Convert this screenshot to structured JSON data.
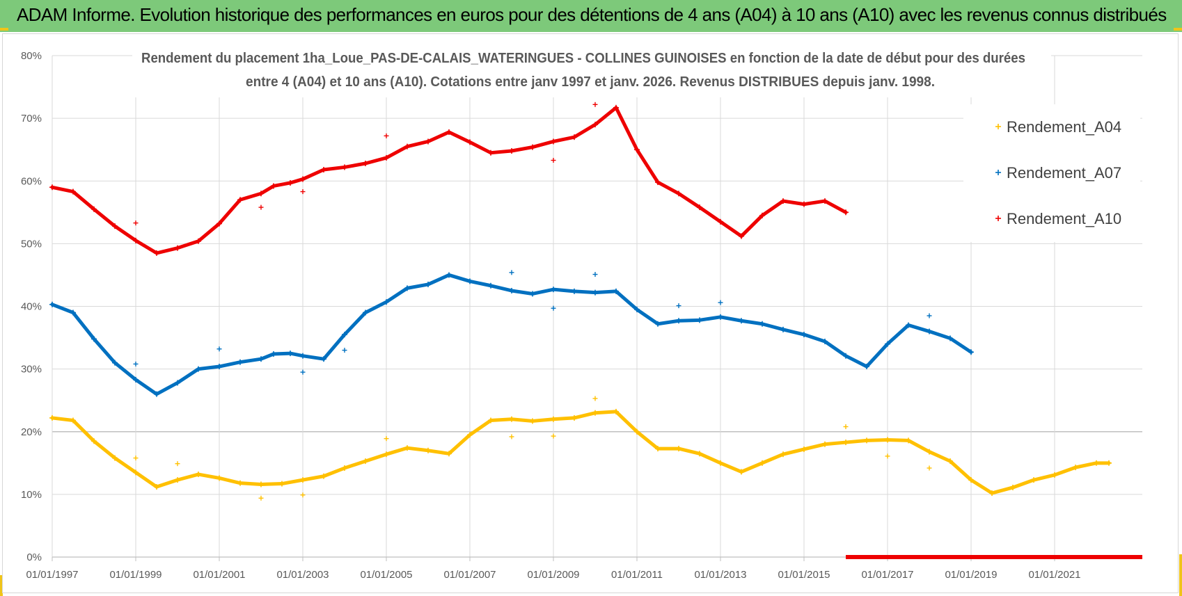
{
  "header": {
    "title": "ADAM Informe. Evolution historique des performances en euros pour des détentions de 4 ans (A04) à 10 ans (A10) avec les revenus connus distribués"
  },
  "chart_data": {
    "type": "scatter",
    "title_lines": [
      "Rendement du placement 1ha_Loue_PAS-DE-CALAIS_WATERINGUES - COLLINES GUINOISES en fonction de la date de début pour des durées",
      "entre 4 (A04) et 10 ans (A10). Cotations entre janv 1997 et janv. 2026. Revenus DISTRIBUES depuis janv. 1998."
    ],
    "x_tick_labels": [
      "01/01/1997",
      "01/01/1999",
      "01/01/2001",
      "01/01/2003",
      "01/01/2005",
      "01/01/2007",
      "01/01/2009",
      "01/01/2011",
      "01/01/2013",
      "01/01/2015",
      "01/01/2017",
      "01/01/2019",
      "01/01/2021"
    ],
    "y_tick_labels": [
      "0%",
      "10%",
      "20%",
      "30%",
      "40%",
      "50%",
      "60%",
      "70%",
      "80%"
    ],
    "xlim": [
      1997.0,
      2023.1
    ],
    "ylim": [
      0,
      80
    ],
    "grid": true,
    "legend_position": "top-right",
    "series": [
      {
        "name": "Rendement_A04",
        "color": "#ffc000",
        "points": [
          [
            1997.0,
            22.2
          ],
          [
            1997.5,
            21.8
          ],
          [
            1998.0,
            18.5
          ],
          [
            1998.5,
            15.8
          ],
          [
            1999.0,
            13.5
          ],
          [
            1999.5,
            11.2
          ],
          [
            2000.0,
            12.3
          ],
          [
            2000.5,
            13.2
          ],
          [
            2001.0,
            12.6
          ],
          [
            2001.5,
            11.8
          ],
          [
            2002.0,
            11.6
          ],
          [
            2002.5,
            11.7
          ],
          [
            2003.0,
            12.3
          ],
          [
            2003.5,
            12.9
          ],
          [
            2004.0,
            14.2
          ],
          [
            2004.5,
            15.3
          ],
          [
            2005.0,
            16.4
          ],
          [
            2005.5,
            17.4
          ],
          [
            2006.0,
            17.0
          ],
          [
            2006.5,
            16.5
          ],
          [
            2007.0,
            19.5
          ],
          [
            2007.5,
            21.8
          ],
          [
            2008.0,
            22.0
          ],
          [
            2008.5,
            21.7
          ],
          [
            2009.0,
            22.0
          ],
          [
            2009.5,
            22.2
          ],
          [
            2010.0,
            23.0
          ],
          [
            2010.5,
            23.2
          ],
          [
            2011.0,
            20.0
          ],
          [
            2011.5,
            17.3
          ],
          [
            2012.0,
            17.3
          ],
          [
            2012.5,
            16.5
          ],
          [
            2013.0,
            15.0
          ],
          [
            2013.5,
            13.6
          ],
          [
            2014.0,
            15.0
          ],
          [
            2014.5,
            16.4
          ],
          [
            2015.0,
            17.2
          ],
          [
            2015.5,
            18.0
          ],
          [
            2016.0,
            18.3
          ],
          [
            2016.5,
            18.6
          ],
          [
            2017.0,
            18.7
          ],
          [
            2017.5,
            18.6
          ],
          [
            2018.0,
            16.8
          ],
          [
            2018.5,
            15.3
          ],
          [
            2019.0,
            12.3
          ],
          [
            2019.5,
            10.2
          ],
          [
            2020.0,
            11.1
          ],
          [
            2020.5,
            12.3
          ],
          [
            2021.0,
            13.1
          ],
          [
            2021.5,
            14.3
          ],
          [
            2022.0,
            15.0
          ],
          [
            2022.3,
            15.0
          ]
        ],
        "outliers": [
          [
            1999.0,
            15.8
          ],
          [
            2000.0,
            14.9
          ],
          [
            2002.0,
            9.4
          ],
          [
            2003.0,
            9.9
          ],
          [
            2005.0,
            18.9
          ],
          [
            2008.0,
            19.2
          ],
          [
            2009.0,
            19.3
          ],
          [
            2010.0,
            25.3
          ],
          [
            2016.0,
            20.8
          ],
          [
            2017.0,
            16.1
          ],
          [
            2018.0,
            14.2
          ]
        ]
      },
      {
        "name": "Rendement_A07",
        "color": "#0070c0",
        "points": [
          [
            1997.0,
            40.3
          ],
          [
            1997.5,
            39.0
          ],
          [
            1998.0,
            34.8
          ],
          [
            1998.5,
            31.0
          ],
          [
            1999.0,
            28.3
          ],
          [
            1999.5,
            26.0
          ],
          [
            2000.0,
            27.8
          ],
          [
            2000.5,
            30.0
          ],
          [
            2001.0,
            30.4
          ],
          [
            2001.5,
            31.1
          ],
          [
            2002.0,
            31.6
          ],
          [
            2002.3,
            32.4
          ],
          [
            2002.7,
            32.5
          ],
          [
            2003.0,
            32.1
          ],
          [
            2003.5,
            31.6
          ],
          [
            2004.0,
            35.5
          ],
          [
            2004.5,
            39.0
          ],
          [
            2005.0,
            40.7
          ],
          [
            2005.5,
            42.9
          ],
          [
            2006.0,
            43.5
          ],
          [
            2006.5,
            45.0
          ],
          [
            2007.0,
            44.0
          ],
          [
            2007.5,
            43.3
          ],
          [
            2008.0,
            42.5
          ],
          [
            2008.5,
            42.0
          ],
          [
            2009.0,
            42.7
          ],
          [
            2009.5,
            42.4
          ],
          [
            2010.0,
            42.2
          ],
          [
            2010.5,
            42.4
          ],
          [
            2011.0,
            39.5
          ],
          [
            2011.5,
            37.2
          ],
          [
            2012.0,
            37.7
          ],
          [
            2012.5,
            37.8
          ],
          [
            2013.0,
            38.3
          ],
          [
            2013.5,
            37.7
          ],
          [
            2014.0,
            37.2
          ],
          [
            2014.5,
            36.3
          ],
          [
            2015.0,
            35.5
          ],
          [
            2015.5,
            34.4
          ],
          [
            2016.0,
            32.1
          ],
          [
            2016.5,
            30.4
          ],
          [
            2017.0,
            34.0
          ],
          [
            2017.5,
            37.0
          ],
          [
            2018.0,
            36.0
          ],
          [
            2018.5,
            34.9
          ],
          [
            2019.0,
            32.7
          ]
        ],
        "outliers": [
          [
            1999.0,
            30.8
          ],
          [
            2001.0,
            33.2
          ],
          [
            2003.0,
            29.5
          ],
          [
            2004.0,
            33.0
          ],
          [
            2008.0,
            45.4
          ],
          [
            2009.0,
            39.7
          ],
          [
            2010.0,
            45.1
          ],
          [
            2012.0,
            40.1
          ],
          [
            2013.0,
            40.6
          ],
          [
            2018.0,
            38.5
          ]
        ]
      },
      {
        "name": "Rendement_A10",
        "color": "#ee0000",
        "points": [
          [
            1997.0,
            59.0
          ],
          [
            1997.5,
            58.3
          ],
          [
            1998.0,
            55.5
          ],
          [
            1998.5,
            52.8
          ],
          [
            1999.0,
            50.5
          ],
          [
            1999.5,
            48.5
          ],
          [
            2000.0,
            49.3
          ],
          [
            2000.5,
            50.4
          ],
          [
            2001.0,
            53.2
          ],
          [
            2001.5,
            57.0
          ],
          [
            2002.0,
            58.0
          ],
          [
            2002.3,
            59.2
          ],
          [
            2002.7,
            59.7
          ],
          [
            2003.0,
            60.3
          ],
          [
            2003.5,
            61.8
          ],
          [
            2004.0,
            62.2
          ],
          [
            2004.5,
            62.8
          ],
          [
            2005.0,
            63.7
          ],
          [
            2005.5,
            65.5
          ],
          [
            2006.0,
            66.3
          ],
          [
            2006.5,
            67.8
          ],
          [
            2007.0,
            66.2
          ],
          [
            2007.5,
            64.5
          ],
          [
            2008.0,
            64.8
          ],
          [
            2008.5,
            65.4
          ],
          [
            2009.0,
            66.3
          ],
          [
            2009.5,
            67.0
          ],
          [
            2010.0,
            69.0
          ],
          [
            2010.5,
            71.7
          ],
          [
            2011.0,
            65.0
          ],
          [
            2011.5,
            59.8
          ],
          [
            2012.0,
            58.0
          ],
          [
            2012.5,
            55.8
          ],
          [
            2013.0,
            53.5
          ],
          [
            2013.5,
            51.2
          ],
          [
            2014.0,
            54.5
          ],
          [
            2014.5,
            56.8
          ],
          [
            2015.0,
            56.3
          ],
          [
            2015.5,
            56.8
          ],
          [
            2016.0,
            55.0
          ]
        ],
        "outliers": [
          [
            1999.0,
            53.3
          ],
          [
            2002.0,
            55.8
          ],
          [
            2003.0,
            58.3
          ],
          [
            2005.0,
            67.2
          ],
          [
            2009.0,
            63.3
          ],
          [
            2010.0,
            72.2
          ]
        ],
        "baseline": {
          "x_start": 2016.0,
          "x_end": 2023.1,
          "y": 0
        }
      }
    ]
  }
}
